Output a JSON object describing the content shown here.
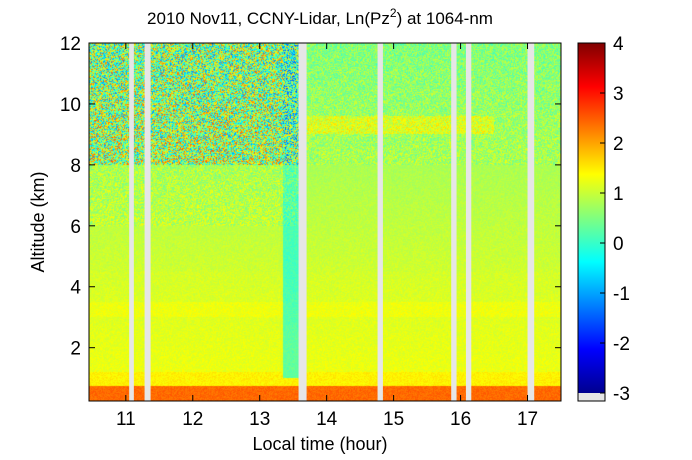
{
  "chart_data": {
    "type": "heatmap",
    "title": {
      "main": "2010 Nov11, CCNY-Lidar, Ln(Pz",
      "superscript": "2",
      "tail": ") at 1064-nm"
    },
    "xlabel": "Local time (hour)",
    "ylabel": "Altitude (km)",
    "xlim": [
      10.45,
      17.5
    ],
    "ylim": [
      0.25,
      12.0
    ],
    "x_ticks": [
      {
        "value": 11,
        "label": "11"
      },
      {
        "value": 12,
        "label": "12"
      },
      {
        "value": 13,
        "label": "13"
      },
      {
        "value": 14,
        "label": "14"
      },
      {
        "value": 15,
        "label": "15"
      },
      {
        "value": 16,
        "label": "16"
      },
      {
        "value": 17,
        "label": "17"
      }
    ],
    "y_ticks": [
      {
        "value": 2,
        "label": "2"
      },
      {
        "value": 4,
        "label": "4"
      },
      {
        "value": 6,
        "label": "6"
      },
      {
        "value": 8,
        "label": "8"
      },
      {
        "value": 10,
        "label": "10"
      },
      {
        "value": 12,
        "label": "12"
      }
    ],
    "colorbar": {
      "colormap": "jet",
      "range": [
        -3,
        4
      ],
      "ticks": [
        {
          "value": 4,
          "label": "4"
        },
        {
          "value": 3,
          "label": "3"
        },
        {
          "value": 2,
          "label": "2"
        },
        {
          "value": 1,
          "label": "1"
        },
        {
          "value": 0,
          "label": "0"
        },
        {
          "value": -1,
          "label": "-1"
        },
        {
          "value": -2,
          "label": "-2"
        },
        {
          "value": -3,
          "label": "-3"
        }
      ],
      "no_data_color": "#e6e6e6"
    },
    "data_gaps_hours": [
      [
        11.05,
        11.12
      ],
      [
        11.28,
        11.37
      ],
      [
        13.58,
        13.7
      ],
      [
        14.76,
        14.84
      ],
      [
        15.86,
        15.94
      ],
      [
        16.08,
        16.16
      ],
      [
        17.0,
        17.1
      ]
    ],
    "layer_structure": [
      {
        "feature": "strong near-surface return",
        "altitude_km": [
          0.25,
          0.75
        ],
        "value": 2.4
      },
      {
        "feature": "boundary layer",
        "altitude_km": [
          0.75,
          4.5
        ],
        "value": 1.2
      },
      {
        "feature": "elevated aerosol layer",
        "altitude_km": [
          9.0,
          9.6
        ],
        "time_hours": [
          13.7,
          16.5
        ],
        "value": 1.3
      },
      {
        "feature": "noisy free troposphere",
        "altitude_km": [
          7.5,
          12.0
        ],
        "time_hours": [
          10.45,
          13.6
        ],
        "value": 0.5
      }
    ],
    "grid": false,
    "legend": "colorbar-right"
  },
  "colors": {
    "no_data": "#e6e6e6",
    "axis": "#000000"
  }
}
